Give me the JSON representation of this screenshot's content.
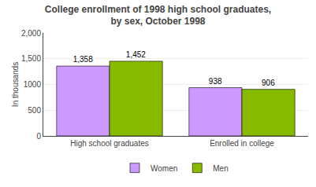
{
  "chart_data": {
    "type": "bar",
    "title": "College enrollment of 1998 high school graduates,\nby sex, October 1998",
    "categories": [
      "High school graduates",
      "Enrolled in college"
    ],
    "series": [
      {
        "name": "Women",
        "color": "#cc99ff",
        "values": [
          1358,
          938
        ],
        "value_labels": [
          "1,358",
          "938"
        ]
      },
      {
        "name": "Men",
        "color": "#88bb00",
        "values": [
          1452,
          906
        ],
        "value_labels": [
          "1,452",
          "906"
        ]
      }
    ],
    "ylabel": "In thousands",
    "ylim": [
      0,
      2000
    ],
    "yticks": [
      0,
      500,
      1000,
      {
        "value": 1500,
        "label": "1,500"
      },
      {
        "value": 2000,
        "label": "2,000"
      }
    ],
    "grid": true,
    "legend": "bottom",
    "data_labels": true
  }
}
